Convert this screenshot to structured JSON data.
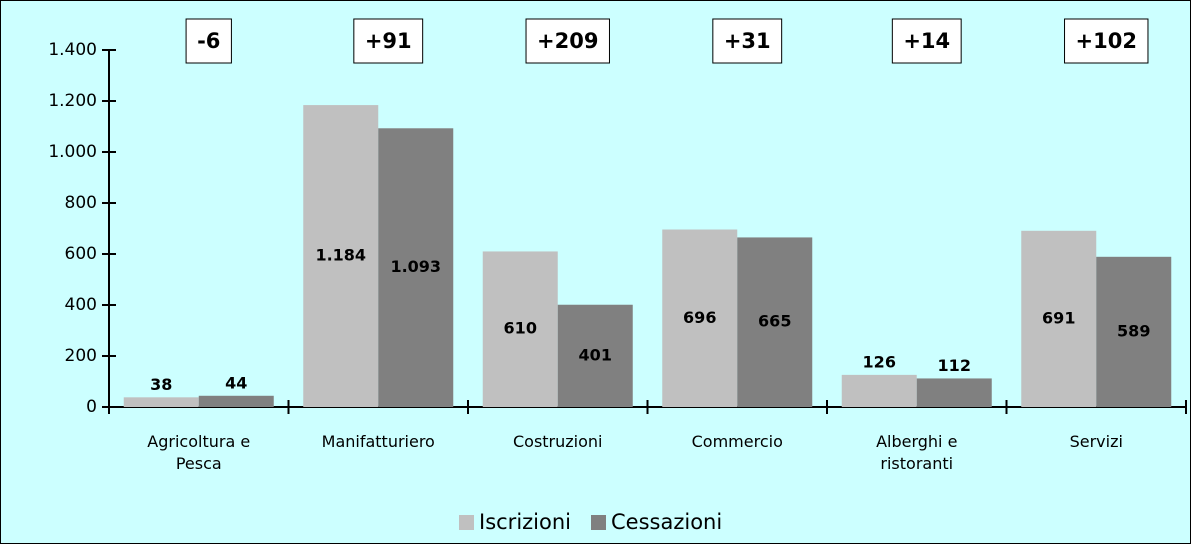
{
  "chart_data": {
    "type": "bar",
    "categories": [
      "Agricoltura e Pesca",
      "Manifatturiero",
      "Costruzioni",
      "Commercio",
      "Alberghi e ristoranti",
      "Servizi"
    ],
    "series": [
      {
        "name": "Iscrizioni",
        "color": "#c0c0c0",
        "values": [
          38,
          1184,
          610,
          696,
          126,
          691
        ],
        "value_labels": [
          "38",
          "1.184",
          "610",
          "696",
          "126",
          "691"
        ]
      },
      {
        "name": "Cessazioni",
        "color": "#808080",
        "values": [
          44,
          1093,
          401,
          665,
          112,
          589
        ],
        "value_labels": [
          "44",
          "1.093",
          "401",
          "665",
          "112",
          "589"
        ]
      }
    ],
    "annotations": [
      "-6",
      "+91",
      "+209",
      "+31",
      "+14",
      "+102"
    ],
    "ylim": [
      0,
      1400
    ],
    "yticks": [
      0,
      200,
      400,
      600,
      800,
      {
        "value": 1000,
        "label": "1.000"
      },
      {
        "value": 1200,
        "label": "1.200"
      },
      {
        "value": 1400,
        "label": "1.400"
      }
    ],
    "legend": "bottom"
  }
}
